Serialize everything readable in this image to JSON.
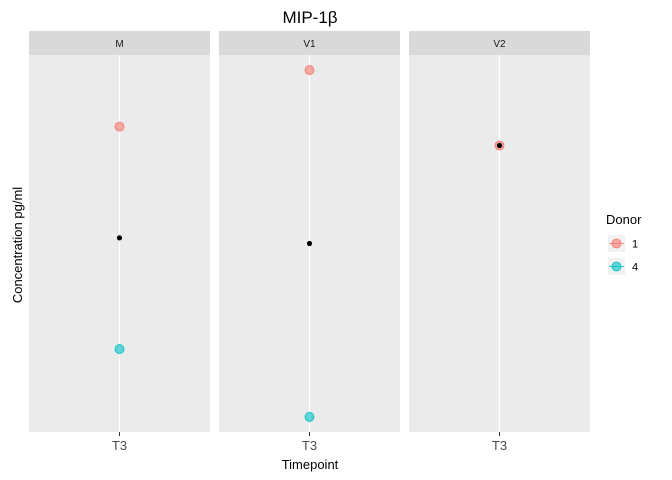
{
  "chart_data": {
    "type": "scatter",
    "title": "MIP-1β",
    "xlabel": "Timepoint",
    "ylabel": "Concentration pg/ml",
    "facets": [
      "M",
      "V1",
      "V2"
    ],
    "x_categories": [
      "T3"
    ],
    "y_ticks_shown": false,
    "grid": true,
    "ylim": [
      0,
      1
    ],
    "legend": {
      "title": "Donor",
      "position": "right",
      "entries": [
        {
          "label": "1",
          "color": "#F8766D"
        },
        {
          "label": "4",
          "color": "#00BFC4"
        }
      ]
    },
    "summary_color": "#000000",
    "facet_points": [
      {
        "facet": "M",
        "points": [
          {
            "donor": "1",
            "x": "T3",
            "y": 0.81
          },
          {
            "donor": "4",
            "x": "T3",
            "y": 0.22
          }
        ],
        "mean": 0.515
      },
      {
        "facet": "V1",
        "points": [
          {
            "donor": "1",
            "x": "T3",
            "y": 0.96
          },
          {
            "donor": "4",
            "x": "T3",
            "y": 0.04
          }
        ],
        "mean": 0.5
      },
      {
        "facet": "V2",
        "points": [
          {
            "donor": "1",
            "x": "T3",
            "y": 0.76
          }
        ],
        "mean": 0.76
      }
    ]
  }
}
